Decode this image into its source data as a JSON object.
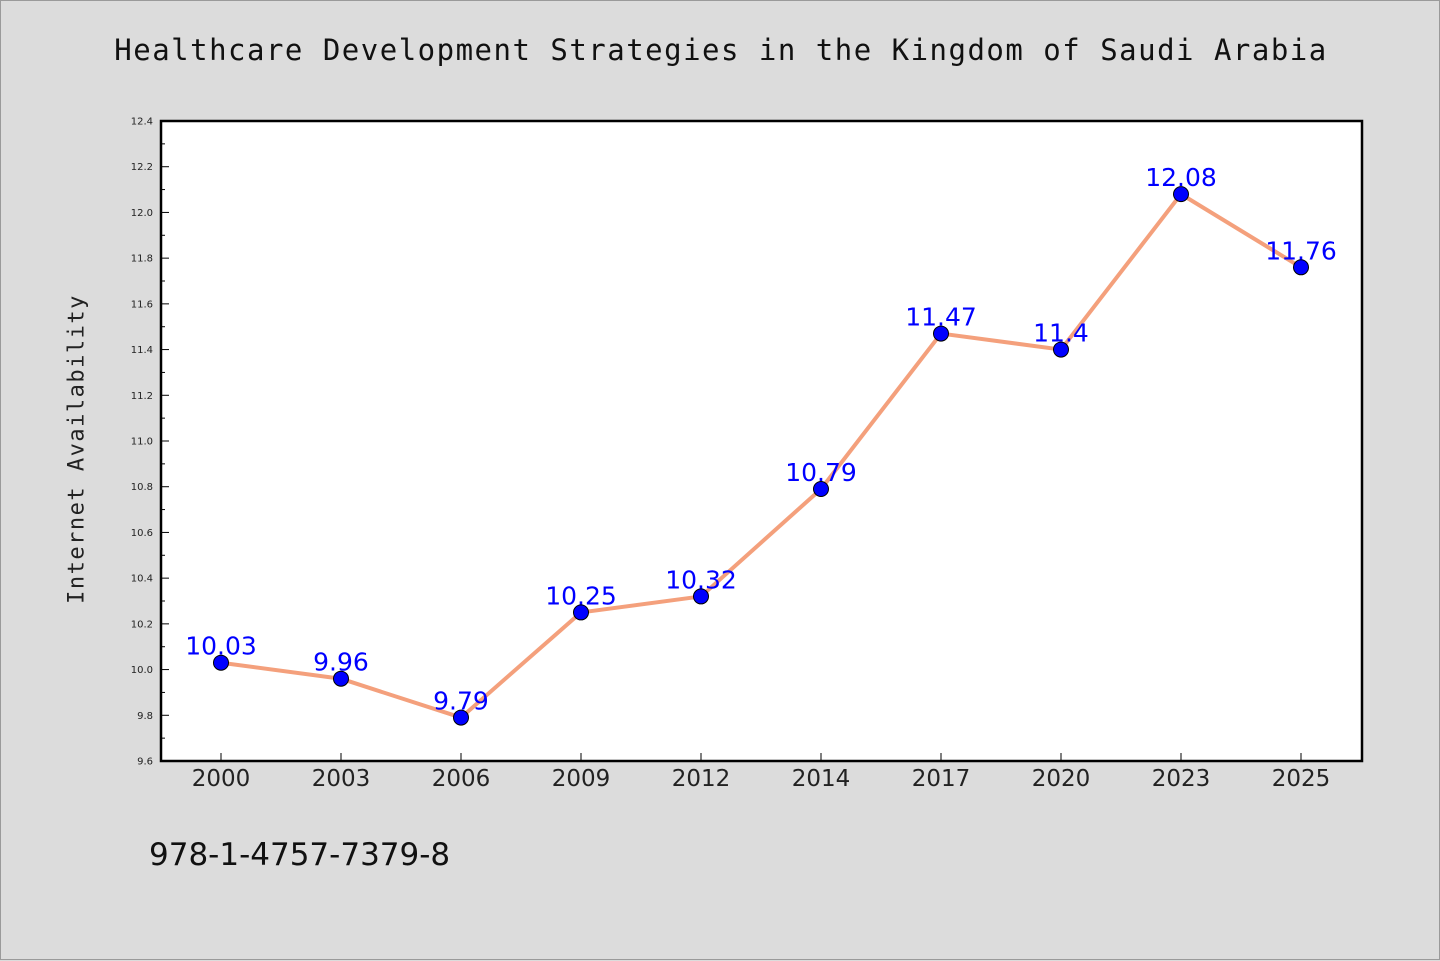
{
  "chart_data": {
    "type": "line",
    "title": "Healthcare Development Strategies in the Kingdom of Saudi Arabia",
    "xlabel": "",
    "ylabel": "Internet Availability",
    "categories": [
      "2000",
      "2003",
      "2006",
      "2009",
      "2012",
      "2014",
      "2017",
      "2020",
      "2023",
      "2025"
    ],
    "series": [
      {
        "values": [
          10.03,
          9.96,
          9.79,
          10.25,
          10.32,
          10.79,
          11.47,
          11.4,
          12.08,
          11.76
        ],
        "labels": [
          "10.03",
          "9.96",
          "9.79",
          "10.25",
          "10.32",
          "10.79",
          "11.47",
          "11.4",
          "12.08",
          "11.76"
        ],
        "line_color": "#f4a07c",
        "marker_color": "#0000ff"
      }
    ],
    "ylim": [
      9.6,
      12.4
    ],
    "yticks": [
      "9.6",
      "9.8",
      "10.0",
      "10.2",
      "10.4",
      "10.6",
      "10.8",
      "11.0",
      "11.2",
      "11.4",
      "11.6",
      "11.8",
      "12.0",
      "12.2",
      "12.4"
    ],
    "grid": false,
    "legend": "none"
  },
  "footer": {
    "isbn": "978-1-4757-7379-8"
  }
}
